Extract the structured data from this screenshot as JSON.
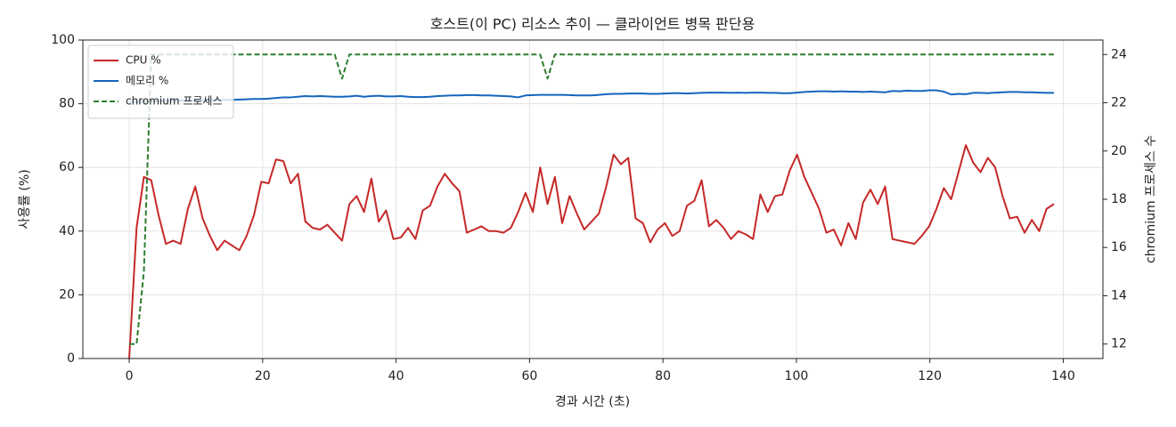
{
  "chart_data": {
    "type": "line",
    "title": "호스트(이 PC) 리소스 추이 — 클라이언트 병목 판단용",
    "xlabel": "경과 시간 (초)",
    "ylabel": "사용률 (%)",
    "y2label": "chromium 프로세스 수",
    "x": [
      0,
      1.1,
      2.2,
      3.3,
      4.4,
      5.5,
      6.6,
      7.7,
      8.8,
      9.9,
      11,
      12.1,
      13.2,
      14.3,
      15.4,
      16.5,
      17.6,
      18.7,
      19.8,
      20.9,
      22,
      23.1,
      24.2,
      25.3,
      26.4,
      27.5,
      28.6,
      29.7,
      30.8,
      31.9,
      33,
      34.1,
      35.2,
      36.3,
      37.4,
      38.5,
      39.6,
      40.7,
      41.8,
      42.9,
      44,
      45.1,
      46.2,
      47.3,
      48.4,
      49.5,
      50.6,
      51.7,
      52.8,
      53.9,
      55,
      56.1,
      57.2,
      58.3,
      59.4,
      60.5,
      61.6,
      62.7,
      63.8,
      64.9,
      66,
      67.1,
      68.2,
      69.3,
      70.4,
      71.5,
      72.6,
      73.7,
      74.8,
      75.9,
      77,
      78.1,
      79.2,
      80.3,
      81.4,
      82.5,
      83.6,
      84.7,
      85.8,
      86.9,
      88,
      89.1,
      90.2,
      91.3,
      92.4,
      93.5,
      94.6,
      95.7,
      96.8,
      97.9,
      99,
      100.1,
      101.2,
      102.3,
      103.4,
      104.5,
      105.6,
      106.7,
      107.8,
      108.9,
      110,
      111.1,
      112.2,
      113.3,
      114.4,
      115.5,
      116.6,
      117.7,
      118.8,
      119.9,
      121,
      122.1,
      123.2,
      124.3,
      125.4,
      126.5,
      127.6,
      128.7,
      129.8,
      130.9,
      132,
      133.1,
      134.2,
      135.3,
      136.4,
      137.5,
      138.6
    ],
    "series": [
      {
        "name": "CPU %",
        "color": "#c62828",
        "values": [
          0,
          41,
          57,
          56,
          45,
          36,
          37,
          36,
          47,
          54,
          44,
          38.5,
          34,
          37,
          35.5,
          34,
          38.5,
          45,
          55.5,
          55,
          62.5,
          62,
          55,
          58,
          43,
          41,
          40.5,
          42,
          39.5,
          37,
          48.5,
          51,
          46,
          56.5,
          43,
          46.5,
          37.5,
          38,
          41,
          37.5,
          46.5,
          48,
          54,
          58,
          55,
          52.5,
          39.5,
          40.5,
          41.5,
          40,
          40,
          39.5,
          41,
          46,
          52,
          46,
          60,
          48.5,
          57,
          42.5,
          51,
          45.5,
          40.5,
          43,
          45.5,
          54,
          64,
          61,
          63,
          44,
          42.5,
          36.5,
          40.5,
          42.5,
          38.5,
          40,
          48,
          49.5,
          56,
          41.5,
          43.5,
          41,
          37.5,
          40,
          39,
          37.5,
          51.5,
          46,
          51,
          51.5,
          59,
          64,
          57,
          52,
          47,
          39.5,
          40.5,
          35.5,
          42.5,
          37.5,
          49,
          53,
          48.5,
          54,
          37.5,
          37,
          36.5,
          36,
          38.5,
          41.5,
          47,
          53.5,
          50,
          58.5,
          67,
          61.5,
          58.5,
          63,
          60,
          51,
          44,
          44.5,
          39.5,
          43.5,
          40,
          47,
          48.5
        ]
      },
      {
        "name": "메모리 %",
        "color": "#1565c0",
        "values": [
          80.5,
          80.6,
          80.7,
          80.8,
          80.8,
          80.9,
          80.9,
          81,
          81,
          81,
          81.1,
          81.1,
          81.2,
          81.2,
          81.2,
          81.3,
          81.4,
          81.5,
          81.5,
          81.6,
          81.8,
          82,
          82,
          82.2,
          82.4,
          82.3,
          82.4,
          82.3,
          82.2,
          82.2,
          82.3,
          82.5,
          82.2,
          82.4,
          82.5,
          82.3,
          82.3,
          82.4,
          82.2,
          82.1,
          82.1,
          82.2,
          82.4,
          82.5,
          82.6,
          82.6,
          82.7,
          82.7,
          82.6,
          82.6,
          82.5,
          82.4,
          82.3,
          82,
          82.6,
          82.7,
          82.8,
          82.8,
          82.8,
          82.8,
          82.7,
          82.6,
          82.6,
          82.6,
          82.8,
          83,
          83.1,
          83.1,
          83.2,
          83.2,
          83.2,
          83.1,
          83.1,
          83.2,
          83.3,
          83.3,
          83.2,
          83.3,
          83.4,
          83.5,
          83.5,
          83.5,
          83.4,
          83.5,
          83.4,
          83.5,
          83.5,
          83.4,
          83.4,
          83.3,
          83.3,
          83.5,
          83.7,
          83.8,
          83.9,
          83.9,
          83.8,
          83.9,
          83.8,
          83.8,
          83.7,
          83.8,
          83.7,
          83.6,
          84,
          83.9,
          84.1,
          84,
          84,
          84.2,
          84.2,
          83.8,
          82.9,
          83.1,
          83,
          83.4,
          83.4,
          83.3,
          83.5,
          83.6,
          83.7,
          83.7,
          83.6,
          83.6,
          83.5,
          83.4,
          83.4
        ]
      },
      {
        "name": "chromium 프로세스",
        "color": "#2e7d32",
        "dashed": true,
        "axis": "y2",
        "values": [
          12,
          12,
          15,
          24,
          24,
          24,
          24,
          24,
          24,
          24,
          24,
          24,
          24,
          24,
          24,
          24,
          24,
          24,
          24,
          24,
          24,
          24,
          24,
          24,
          24,
          24,
          24,
          24,
          24,
          23,
          24,
          24,
          24,
          24,
          24,
          24,
          24,
          24,
          24,
          24,
          24,
          24,
          24,
          24,
          24,
          24,
          24,
          24,
          24,
          24,
          24,
          24,
          24,
          24,
          24,
          24,
          24,
          23,
          24,
          24,
          24,
          24,
          24,
          24,
          24,
          24,
          24,
          24,
          24,
          24,
          24,
          24,
          24,
          24,
          24,
          24,
          24,
          24,
          24,
          24,
          24,
          24,
          24,
          24,
          24,
          24,
          24,
          24,
          24,
          24,
          24,
          24,
          24,
          24,
          24,
          24,
          24,
          24,
          24,
          24,
          24,
          24,
          24,
          24,
          24,
          24,
          24,
          24,
          24,
          24,
          24,
          24,
          24,
          24,
          24,
          24,
          24,
          24,
          24,
          24,
          24,
          24,
          24,
          24,
          24,
          24,
          24
        ]
      }
    ],
    "xlim": [
      -6.95,
      145.95
    ],
    "xticks": [
      0,
      20,
      40,
      60,
      80,
      100,
      120,
      140
    ],
    "ylim": [
      0,
      100
    ],
    "yticks": [
      0,
      20,
      40,
      60,
      80,
      100
    ],
    "y2lim": [
      11.4,
      24.6
    ],
    "y2ticks": [
      12,
      14,
      16,
      18,
      20,
      22,
      24
    ],
    "grid": true,
    "legend": "upper left"
  }
}
